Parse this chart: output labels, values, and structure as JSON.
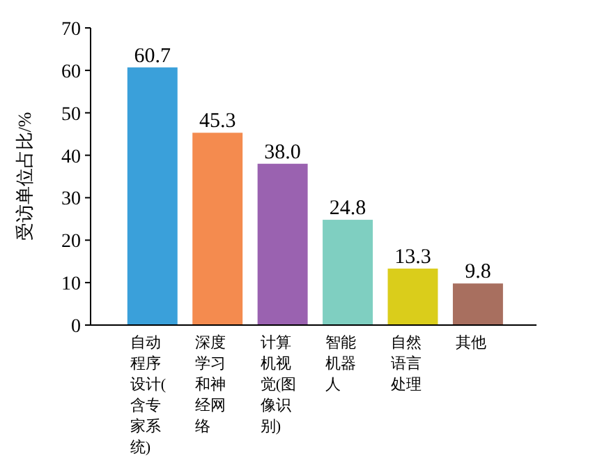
{
  "chart_data": {
    "type": "bar",
    "ylabel": "受访单位占比/%",
    "categories": [
      "自动程序设计(含专家系统)",
      "深度学习和神经网络",
      "计算机视觉(图像识别)",
      "智能机器人",
      "自然语言处理",
      "其他"
    ],
    "values": [
      60.7,
      45.3,
      38.0,
      24.8,
      13.3,
      9.8
    ],
    "value_labels": [
      "60.7",
      "45.3",
      "38.0",
      "24.8",
      "13.3",
      "9.8"
    ],
    "colors": [
      "#3aa0da",
      "#f48b4f",
      "#9a62b0",
      "#7fcfc1",
      "#dacd1b",
      "#a86f5f"
    ],
    "ylim": [
      0,
      70
    ],
    "yticks": [
      0,
      10,
      20,
      30,
      40,
      50,
      60,
      70
    ],
    "grid": false
  }
}
